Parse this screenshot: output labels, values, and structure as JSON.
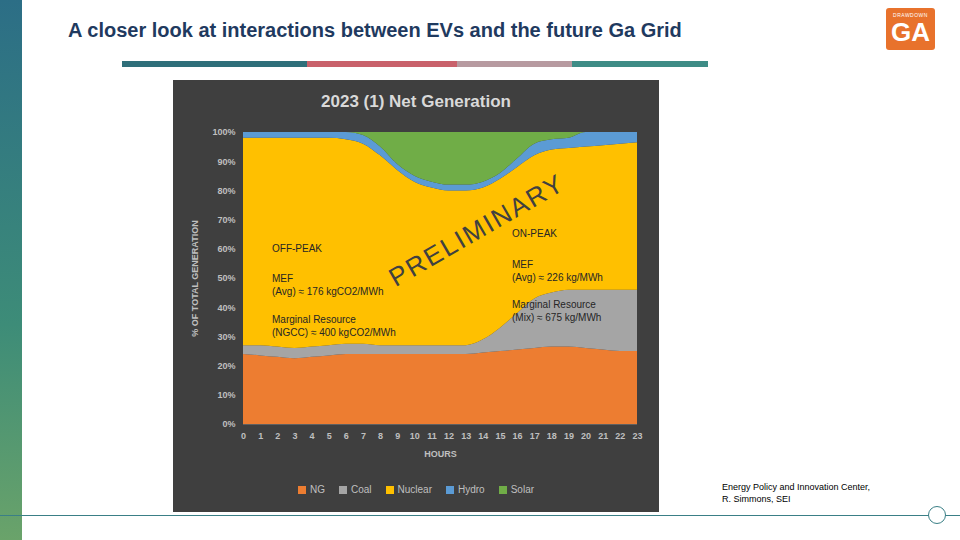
{
  "slide": {
    "title": "A closer look at interactions between EVs and the future Ga Grid",
    "logo": [
      "DRAWDOWN",
      "GA"
    ],
    "source": [
      "Energy Policy and Innovation Center,",
      "R. Simmons, SEI"
    ]
  },
  "chart_data": {
    "type": "area",
    "title": "2023 (1) Net Generation",
    "stacked": true,
    "grid": true,
    "legend": "bottom",
    "xlabel": "HOURS",
    "ylabel": "% OF TOTAL GENERATION",
    "x": [
      0,
      1,
      2,
      3,
      4,
      5,
      6,
      7,
      8,
      9,
      10,
      11,
      12,
      13,
      14,
      15,
      16,
      17,
      18,
      19,
      20,
      21,
      22,
      23
    ],
    "xlim": [
      0,
      23
    ],
    "xticks": [
      0,
      1,
      2,
      3,
      4,
      5,
      6,
      7,
      8,
      9,
      10,
      11,
      12,
      13,
      14,
      15,
      16,
      17,
      18,
      19,
      20,
      21,
      22,
      23
    ],
    "ylim": [
      0,
      100
    ],
    "yticks": [
      {
        "value": 0,
        "label": "0%"
      },
      {
        "value": 10,
        "label": "10%"
      },
      {
        "value": 20,
        "label": "20%"
      },
      {
        "value": 30,
        "label": "30%"
      },
      {
        "value": 40,
        "label": "40%"
      },
      {
        "value": 50,
        "label": "50%"
      },
      {
        "value": 60,
        "label": "60%"
      },
      {
        "value": 70,
        "label": "70%"
      },
      {
        "value": 80,
        "label": "80%"
      },
      {
        "value": 90,
        "label": "90%"
      },
      {
        "value": 100,
        "label": "100%"
      }
    ],
    "series": [
      {
        "name": "NG",
        "color": "#ed7d31",
        "values": [
          24,
          23.5,
          23,
          22.5,
          23,
          23.5,
          24,
          24,
          24,
          24,
          24,
          24,
          24,
          24,
          24.5,
          25,
          25.5,
          26,
          26.5,
          26.5,
          26,
          25.5,
          25,
          25
        ]
      },
      {
        "name": "Coal",
        "color": "#a5a5a5",
        "values": [
          3,
          3.5,
          3.5,
          3.5,
          3.5,
          3.5,
          3.5,
          3.5,
          3,
          3,
          3,
          3,
          3,
          3,
          4.5,
          8,
          12.5,
          17,
          18.5,
          19.5,
          20,
          20.5,
          21,
          21
        ]
      },
      {
        "name": "Nuclear",
        "color": "#ffc000",
        "values": [
          71,
          71,
          71.5,
          72,
          71.5,
          71,
          70,
          68.5,
          65,
          60,
          56,
          54,
          53,
          53,
          52,
          51,
          50,
          49,
          49,
          48.5,
          49,
          49.5,
          50,
          50.5
        ]
      },
      {
        "name": "Hydro",
        "color": "#5b9bd5",
        "values": [
          2,
          2,
          2,
          2,
          2,
          2,
          2.5,
          3,
          3,
          2,
          2,
          2,
          2,
          2,
          2,
          2,
          3,
          4,
          3.5,
          3.5,
          5,
          4.5,
          4,
          3.5
        ]
      },
      {
        "name": "Solar",
        "color": "#70ad47",
        "values": [
          0,
          0,
          0,
          0,
          0,
          0,
          0,
          1,
          5,
          11,
          15,
          17,
          18,
          18,
          17,
          14,
          9,
          4,
          2.5,
          2,
          0,
          0,
          0,
          0
        ]
      }
    ],
    "annotations": [
      {
        "text": [
          "OFF-PEAK"
        ]
      },
      {
        "text": [
          "MEF",
          "(Avg) ≈ 176 kgCO2/MWh"
        ]
      },
      {
        "text": [
          "Marginal Resource",
          "(NGCC) ≈ 400 kgCO2/MWh"
        ]
      },
      {
        "text": [
          "ON-PEAK"
        ]
      },
      {
        "text": [
          "MEF",
          "(Avg) ≈ 226 kg/MWh"
        ]
      },
      {
        "text": [
          "Marginal Resource",
          "(Mix) ≈ 675 kg/MWh"
        ]
      },
      {
        "text": [
          "PRELIMINARY"
        ]
      }
    ]
  }
}
